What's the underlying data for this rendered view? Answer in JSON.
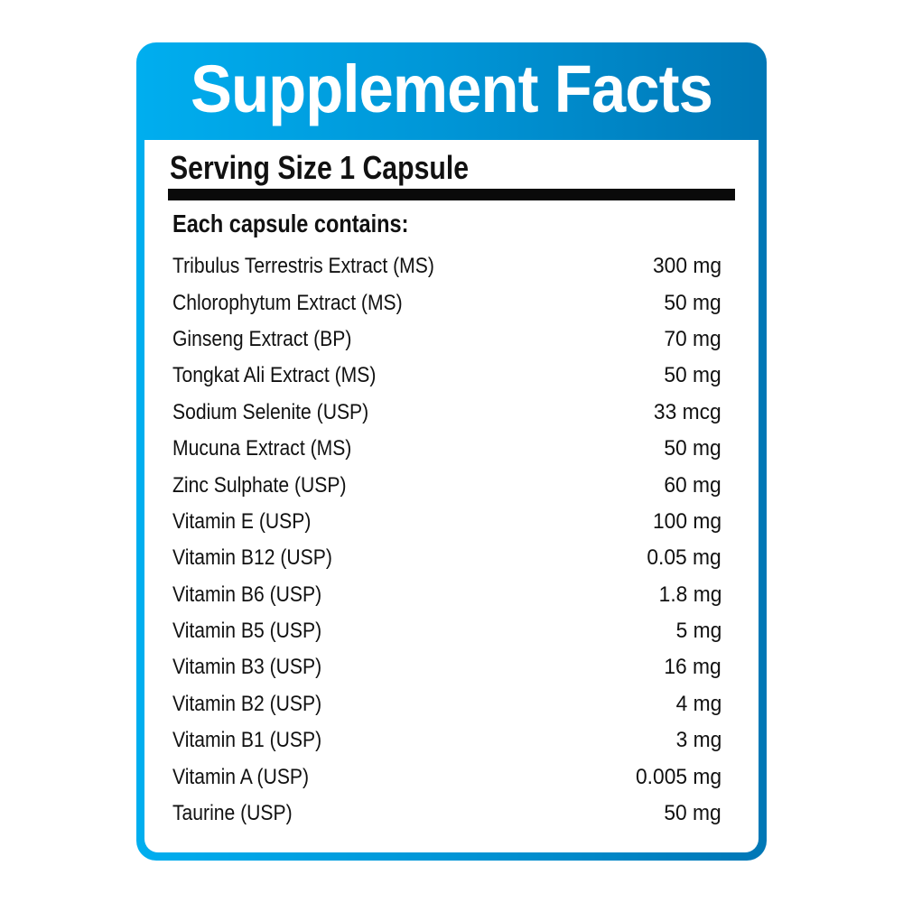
{
  "title": "Supplement Facts",
  "serving_size": "Serving Size 1 Capsule",
  "section_heading": "Each capsule contains:",
  "colors": {
    "frame_left": "#00aeef",
    "frame_right": "#0077b6"
  },
  "ingredients": [
    {
      "name": "Tribulus Terrestris Extract (MS)",
      "amount": "300 mg"
    },
    {
      "name": "Chlorophytum Extract (MS)",
      "amount": "50 mg"
    },
    {
      "name": "Ginseng Extract (BP)",
      "amount": "70 mg"
    },
    {
      "name": "Tongkat Ali Extract (MS)",
      "amount": "50 mg"
    },
    {
      "name": "Sodium Selenite (USP)",
      "amount": "33 mcg"
    },
    {
      "name": "Mucuna Extract (MS)",
      "amount": "50 mg"
    },
    {
      "name": "Zinc Sulphate (USP)",
      "amount": "60 mg"
    },
    {
      "name": "Vitamin E (USP)",
      "amount": "100 mg"
    },
    {
      "name": "Vitamin B12 (USP)",
      "amount": "0.05 mg"
    },
    {
      "name": "Vitamin B6 (USP)",
      "amount": "1.8 mg"
    },
    {
      "name": "Vitamin B5 (USP)",
      "amount": "5 mg"
    },
    {
      "name": "Vitamin B3 (USP)",
      "amount": "16 mg"
    },
    {
      "name": "Vitamin B2 (USP)",
      "amount": "4 mg"
    },
    {
      "name": "Vitamin B1 (USP)",
      "amount": "3 mg"
    },
    {
      "name": "Vitamin A (USP)",
      "amount": "0.005 mg"
    },
    {
      "name": "Taurine (USP)",
      "amount": "50 mg"
    }
  ]
}
